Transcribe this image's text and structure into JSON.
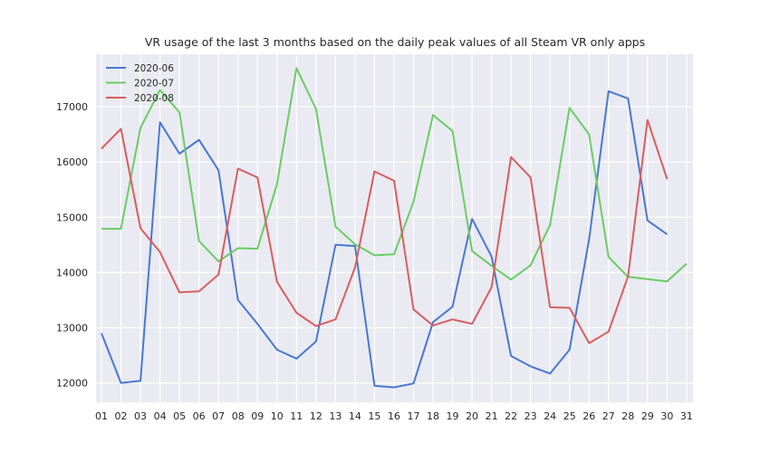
{
  "chart_data": {
    "type": "line",
    "title": "VR usage of the last 3 months based on the daily peak values of all Steam VR only apps",
    "xlabel": "",
    "ylabel": "",
    "categories": [
      "01",
      "02",
      "03",
      "04",
      "05",
      "06",
      "07",
      "08",
      "09",
      "10",
      "11",
      "12",
      "13",
      "14",
      "15",
      "16",
      "17",
      "18",
      "19",
      "20",
      "21",
      "22",
      "23",
      "24",
      "25",
      "26",
      "27",
      "28",
      "29",
      "30",
      "31"
    ],
    "ylim": [
      11650,
      17950
    ],
    "yticks": [
      12000,
      13000,
      14000,
      15000,
      16000,
      17000
    ],
    "grid": true,
    "legend_position": "top-left",
    "series": [
      {
        "name": "2020-06",
        "color": "#4878d0",
        "values": [
          12900,
          12000,
          12040,
          16720,
          16150,
          16400,
          15850,
          13500,
          13070,
          12600,
          12440,
          12750,
          14500,
          14480,
          11950,
          11920,
          11990,
          13100,
          13380,
          14970,
          14290,
          12490,
          12300,
          12170,
          12600,
          14600,
          17280,
          17150,
          14940,
          14690,
          null
        ]
      },
      {
        "name": "2020-07",
        "color": "#6acc64",
        "values": [
          14790,
          14790,
          16620,
          17300,
          16900,
          14570,
          14200,
          14440,
          14430,
          15600,
          17700,
          16960,
          14830,
          14510,
          14310,
          14330,
          15280,
          16850,
          16560,
          14390,
          14120,
          13870,
          14130,
          14860,
          16980,
          16500,
          14280,
          13920,
          13880,
          13840,
          14160
        ]
      },
      {
        "name": "2020-08",
        "color": "#d65f5f",
        "values": [
          16240,
          16600,
          14800,
          14370,
          13640,
          13660,
          13960,
          15880,
          15720,
          13830,
          13270,
          13030,
          13150,
          14090,
          15830,
          15660,
          13330,
          13040,
          13150,
          13070,
          13730,
          16090,
          15720,
          13370,
          13360,
          12720,
          12930,
          13930,
          16760,
          15690,
          null
        ]
      }
    ]
  }
}
